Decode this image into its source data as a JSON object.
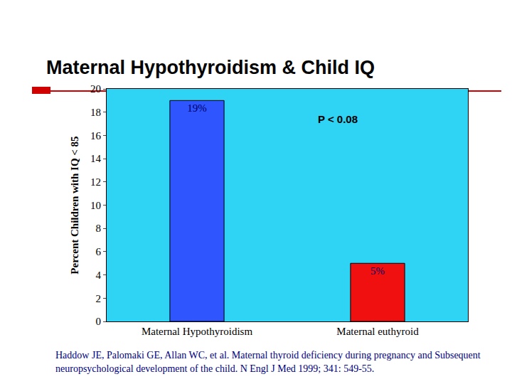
{
  "chart_data": {
    "type": "bar",
    "title": "Maternal Hypothyroidism & Child IQ",
    "y_label": "Percent Children with IQ < 85",
    "categories": [
      "Maternal Hypothyroidism",
      "Maternal euthyroid"
    ],
    "values": [
      19,
      5
    ],
    "value_labels": [
      "19%",
      "5%"
    ],
    "colors": [
      "#2f55ff",
      "#f01010"
    ],
    "ylim": [
      0,
      20
    ],
    "yticks": [
      0,
      2,
      4,
      6,
      8,
      10,
      12,
      14,
      16,
      18,
      20
    ],
    "grid": false,
    "data_labels": true,
    "annotations": [
      "P < 0.08"
    ],
    "source": "Haddow JE, Palomaki GE, Allan WC, et al. Maternal thyroid deficiency during pregnancy and Subsequent neuropsychological development of the child. N Engl J Med 1999; 341: 549-55."
  }
}
